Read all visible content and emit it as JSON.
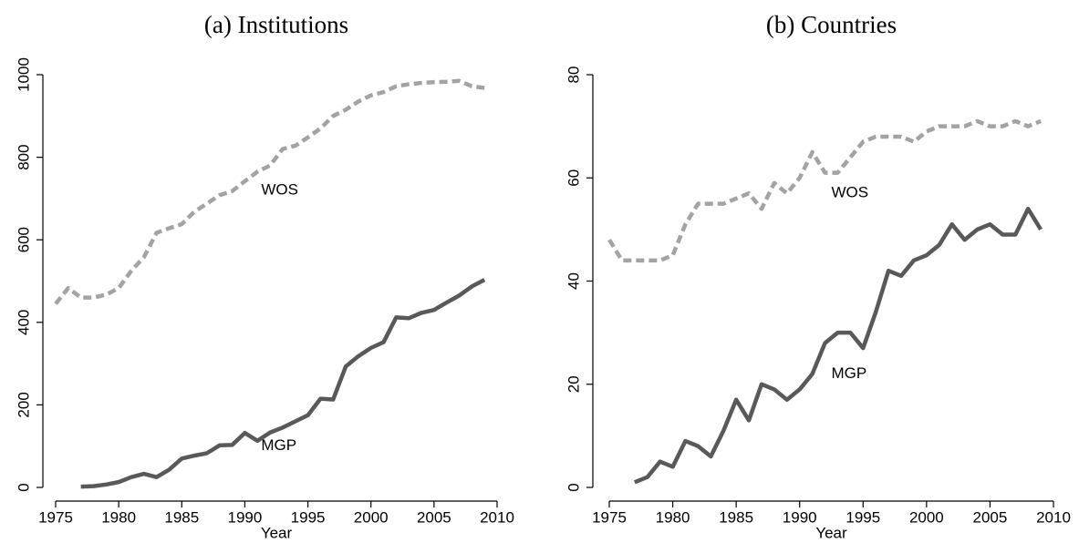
{
  "chart_data": [
    {
      "type": "line",
      "title": "(a) Institutions",
      "xlabel": "Year",
      "x": [
        1975,
        1976,
        1977,
        1978,
        1979,
        1980,
        1981,
        1982,
        1983,
        1984,
        1985,
        1986,
        1987,
        1988,
        1989,
        1990,
        1991,
        1992,
        1993,
        1994,
        1995,
        1996,
        1997,
        1998,
        1999,
        2000,
        2001,
        2002,
        2003,
        2004,
        2005,
        2006,
        2007,
        2008,
        2009
      ],
      "series": [
        {
          "name": "WOS",
          "color": "#a3a3a3",
          "dash": true,
          "values": [
            445,
            483,
            460,
            460,
            467,
            483,
            525,
            558,
            617,
            628,
            638,
            668,
            688,
            708,
            718,
            742,
            765,
            780,
            820,
            828,
            848,
            870,
            900,
            915,
            935,
            950,
            958,
            972,
            977,
            980,
            982,
            983,
            985,
            972,
            968
          ]
        },
        {
          "name": "MGP",
          "color": "#595959",
          "dash": false,
          "values": [
            null,
            null,
            2,
            3,
            7,
            13,
            25,
            33,
            25,
            43,
            70,
            77,
            83,
            102,
            103,
            132,
            113,
            133,
            145,
            160,
            175,
            215,
            213,
            293,
            318,
            338,
            352,
            412,
            410,
            423,
            430,
            448,
            465,
            487,
            503
          ]
        }
      ],
      "xlim": [
        1975,
        2010
      ],
      "xticks": [
        1975,
        1980,
        1985,
        1990,
        1995,
        2000,
        2005,
        2010
      ],
      "ylim": [
        0,
        1000
      ],
      "yticks": [
        0,
        200,
        400,
        600,
        800,
        1000
      ]
    },
    {
      "type": "line",
      "title": "(b) Countries",
      "xlabel": "Year",
      "x": [
        1975,
        1976,
        1977,
        1978,
        1979,
        1980,
        1981,
        1982,
        1983,
        1984,
        1985,
        1986,
        1987,
        1988,
        1989,
        1990,
        1991,
        1992,
        1993,
        1994,
        1995,
        1996,
        1997,
        1998,
        1999,
        2000,
        2001,
        2002,
        2003,
        2004,
        2005,
        2006,
        2007,
        2008,
        2009
      ],
      "series": [
        {
          "name": "WOS",
          "color": "#a3a3a3",
          "dash": true,
          "values": [
            48,
            44,
            44,
            44,
            44,
            45,
            51,
            55,
            55,
            55,
            56,
            57,
            54,
            59,
            57,
            60,
            65,
            61,
            61,
            64,
            67,
            68,
            68,
            68,
            67,
            69,
            70,
            70,
            70,
            71,
            70,
            70,
            71,
            70,
            71
          ]
        },
        {
          "name": "MGP",
          "color": "#595959",
          "dash": false,
          "values": [
            null,
            null,
            1,
            2,
            5,
            4,
            9,
            8,
            6,
            11,
            17,
            13,
            20,
            19,
            17,
            19,
            22,
            28,
            30,
            30,
            27,
            34,
            42,
            41,
            44,
            45,
            47,
            51,
            48,
            50,
            51,
            49,
            49,
            54,
            50
          ]
        }
      ],
      "xlim": [
        1975,
        2010
      ],
      "xticks": [
        1975,
        1980,
        1985,
        1990,
        1995,
        2000,
        2005,
        2010
      ],
      "ylim": [
        0,
        80
      ],
      "yticks": [
        0,
        20,
        40,
        60,
        80
      ]
    }
  ]
}
